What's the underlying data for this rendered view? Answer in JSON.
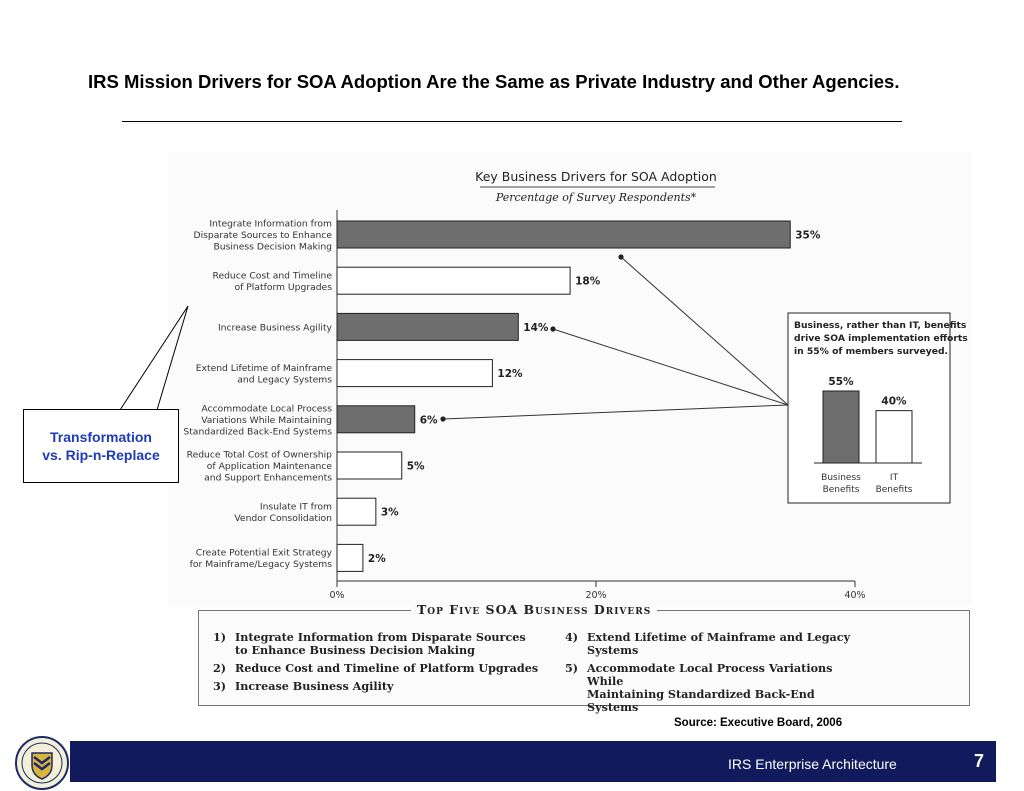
{
  "slide": {
    "title": "IRS Mission Drivers for SOA Adoption Are the Same as Private Industry and Other Agencies.",
    "callout": [
      "Transformation",
      "vs. Rip-n-Replace"
    ],
    "source": "Source: Executive Board, 2006",
    "footer_text": "IRS Enterprise Architecture",
    "page_number": "7"
  },
  "chart_data": [
    {
      "type": "bar",
      "orientation": "horizontal",
      "title": "Key Business Drivers for SOA Adoption",
      "subtitle": "Percentage of Survey Respondents*",
      "categories": [
        [
          "Integrate Information from",
          "Disparate Sources to Enhance",
          "Business Decision Making"
        ],
        [
          "Reduce Cost and Timeline",
          "of Platform Upgrades"
        ],
        [
          "Increase Business Agility"
        ],
        [
          "Extend Lifetime of Mainframe",
          "and Legacy Systems"
        ],
        [
          "Accommodate Local Process",
          "Variations While Maintaining",
          "Standardized Back-End Systems"
        ],
        [
          "Reduce Total Cost of Ownership",
          "of Application Maintenance",
          "and Support Enhancements"
        ],
        [
          "Insulate IT from",
          "Vendor Consolidation"
        ],
        [
          "Create Potential Exit Strategy",
          "for Mainframe/Legacy Systems"
        ]
      ],
      "values": [
        35,
        18,
        14,
        12,
        6,
        5,
        3,
        2
      ],
      "value_labels": [
        "35%",
        "18%",
        "14%",
        "12%",
        "6%",
        "5%",
        "3%",
        "2%"
      ],
      "shaded": [
        true,
        false,
        true,
        false,
        true,
        false,
        false,
        false
      ],
      "xlim": [
        0,
        40
      ],
      "xticks": [
        0,
        20,
        40
      ],
      "xtick_labels": [
        "0%",
        "20%",
        "40%"
      ],
      "colors": {
        "shaded": "#6e6e6e",
        "unshaded": "#ffffff",
        "outline": "#222222"
      }
    },
    {
      "type": "bar",
      "title": "Business, rather than IT, benefits drive SOA implementation efforts in 55% of members surveyed.",
      "title_lines": [
        "Business, rather than IT, benefits",
        "drive SOA implementation efforts",
        "in 55% of members surveyed."
      ],
      "categories": [
        [
          "Business",
          "Benefits"
        ],
        [
          "IT",
          "Benefits"
        ]
      ],
      "values": [
        55,
        40
      ],
      "value_labels": [
        "55%",
        "40%"
      ],
      "ylim": [
        0,
        55
      ],
      "colors": {
        "business": "#6e6e6e",
        "it": "#ffffff"
      }
    }
  ],
  "top_five": {
    "title": "Top Five SOA Business Drivers",
    "left": [
      {
        "num": "1)",
        "lines": [
          "Integrate Information from Disparate Sources",
          "to Enhance Business Decision Making"
        ]
      },
      {
        "num": "2)",
        "lines": [
          "Reduce Cost and Timeline of Platform Upgrades"
        ]
      },
      {
        "num": "3)",
        "lines": [
          "Increase Business Agility"
        ]
      }
    ],
    "right": [
      {
        "num": "4)",
        "lines": [
          "Extend Lifetime of Mainframe and Legacy",
          "Systems"
        ]
      },
      {
        "num": "5)",
        "lines": [
          "Accommodate Local Process Variations While",
          "Maintaining Standardized Back-End Systems"
        ]
      }
    ]
  }
}
